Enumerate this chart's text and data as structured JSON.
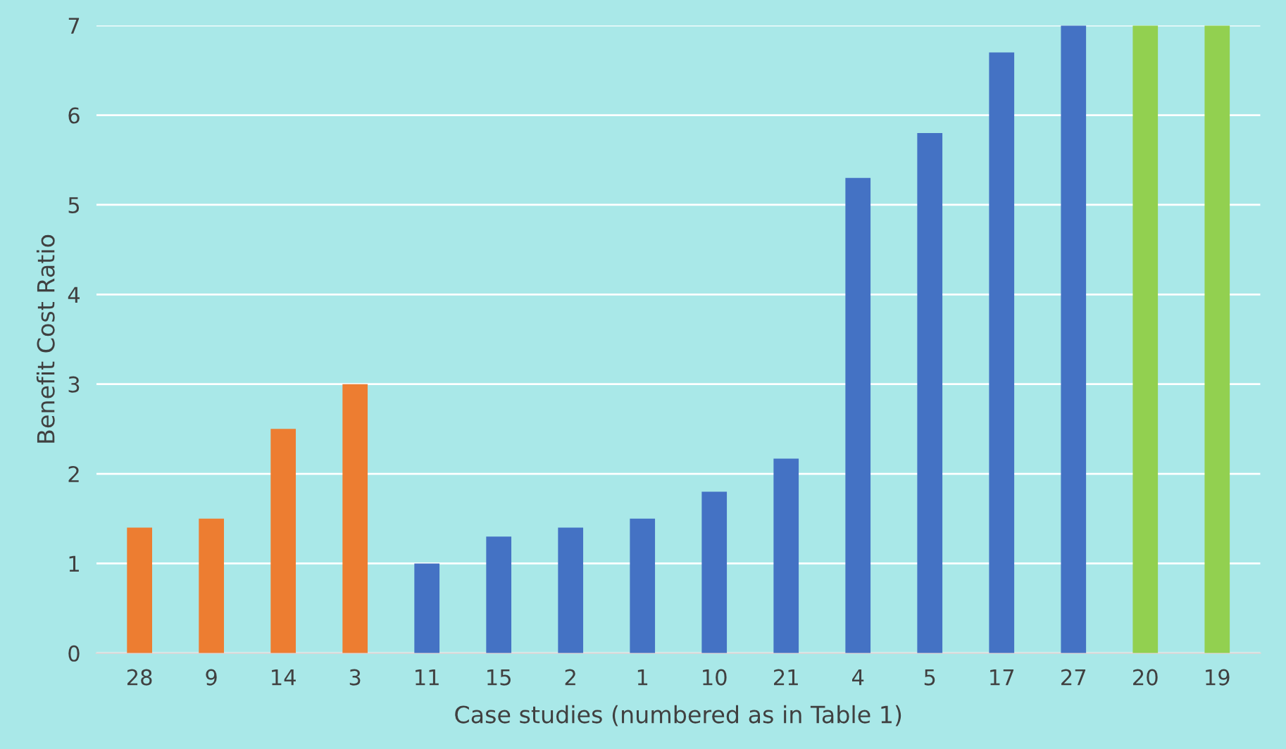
{
  "chart_data": {
    "type": "bar",
    "xlabel": "Case studies (numbered as in Table 1)",
    "ylabel": "Benefit Cost Ratio",
    "categories": [
      "28",
      "9",
      "14",
      "3",
      "11",
      "15",
      "2",
      "1",
      "10",
      "21",
      "4",
      "5",
      "17",
      "27",
      "20",
      "19"
    ],
    "values": [
      1.4,
      1.5,
      2.5,
      3.0,
      1.0,
      1.3,
      1.4,
      1.5,
      1.8,
      2.17,
      5.3,
      5.8,
      6.7,
      7.0,
      7.0,
      7.0
    ],
    "colors": [
      "#ed7d31",
      "#ed7d31",
      "#ed7d31",
      "#ed7d31",
      "#4472c4",
      "#4472c4",
      "#4472c4",
      "#4472c4",
      "#4472c4",
      "#4472c4",
      "#4472c4",
      "#4472c4",
      "#4472c4",
      "#4472c4",
      "#92d050",
      "#92d050"
    ],
    "ylim": [
      0,
      7
    ],
    "yticks": [
      0,
      1,
      2,
      3,
      4,
      5,
      6,
      7
    ],
    "grid": "y",
    "legend": false
  }
}
